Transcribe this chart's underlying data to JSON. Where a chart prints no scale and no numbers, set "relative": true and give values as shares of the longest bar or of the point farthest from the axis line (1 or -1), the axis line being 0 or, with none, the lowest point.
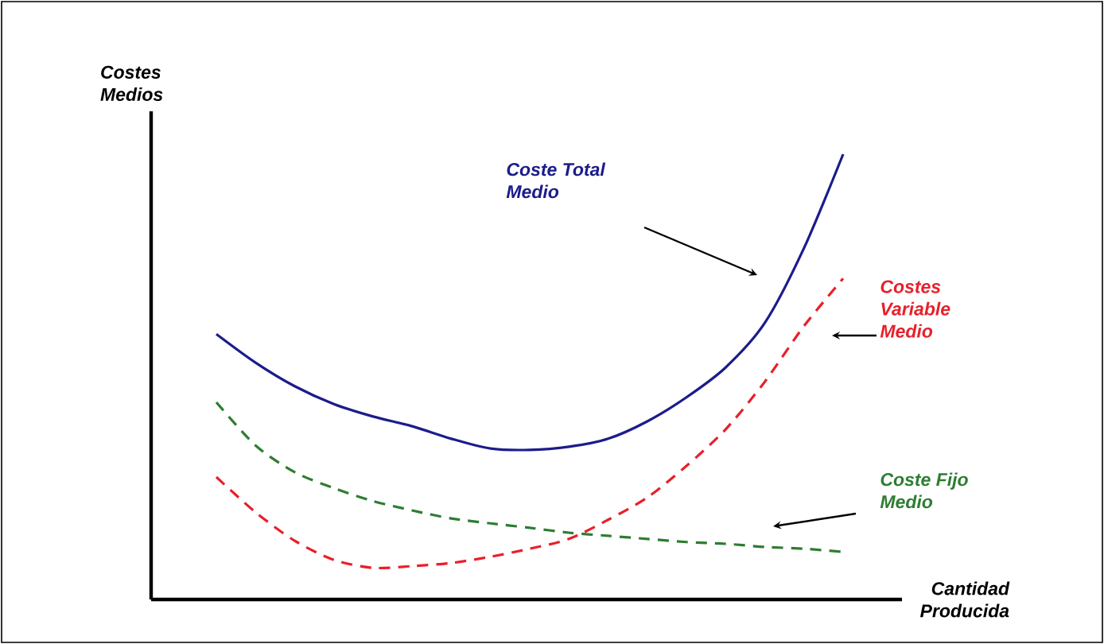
{
  "chart_data": {
    "type": "line",
    "relative": true,
    "xlabel": "Cantidad Producida",
    "ylabel": "Costes Medios",
    "categories": [
      null,
      null,
      null,
      null,
      null,
      null,
      null,
      null,
      null,
      null,
      null,
      null,
      null,
      null,
      null,
      null,
      null
    ],
    "legend": false,
    "marker": "none",
    "series": [
      {
        "name": "Coste Total Medio",
        "color": "#1c1c8c",
        "line_style": "solid",
        "values": [
          0.596,
          0.532,
          0.479,
          0.439,
          0.411,
          0.389,
          0.361,
          0.339,
          0.336,
          0.343,
          0.361,
          0.4,
          0.454,
          0.521,
          0.621,
          0.789,
          1
        ]
      },
      {
        "name": "Costes Variable Medio",
        "color": "#e8202a",
        "line_style": "dashed",
        "values": [
          0.275,
          0.196,
          0.132,
          0.089,
          0.071,
          0.075,
          0.082,
          0.096,
          0.114,
          0.136,
          0.179,
          0.229,
          0.3,
          0.382,
          0.489,
          0.614,
          0.721
        ]
      },
      {
        "name": "Coste Fijo Medio",
        "color": "#2e7d32",
        "line_style": "dashed",
        "values": [
          0.443,
          0.346,
          0.286,
          0.25,
          0.221,
          0.2,
          0.182,
          0.171,
          0.161,
          0.15,
          0.143,
          0.136,
          0.129,
          0.125,
          0.118,
          0.114,
          0.107
        ]
      }
    ]
  }
}
